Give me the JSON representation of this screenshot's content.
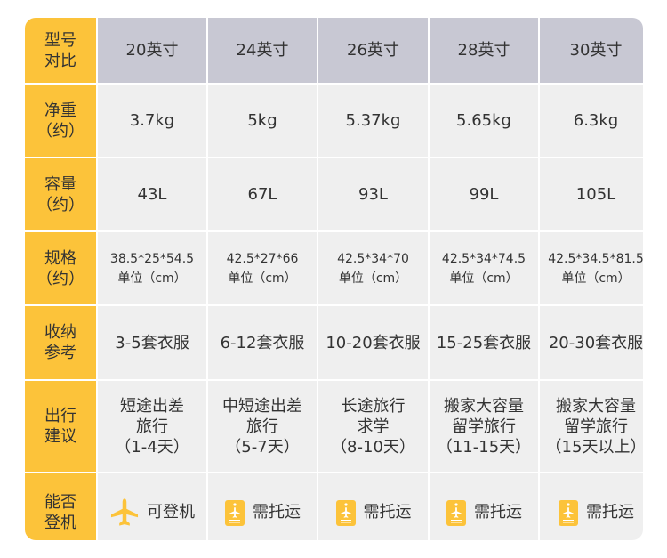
{
  "colors": {
    "label_bg": "#fcc33a",
    "header_bg": "#c8c8d3",
    "cell_bg": "#efefef",
    "icon": "#fcc33a"
  },
  "rows": [
    {
      "label": [
        "型号",
        "对比"
      ],
      "cells": [
        "20英寸",
        "24英寸",
        "26英寸",
        "28英寸",
        "30英寸"
      ]
    },
    {
      "label": [
        "净重",
        "（约）"
      ],
      "cells": [
        "3.7kg",
        "5kg",
        "5.37kg",
        "5.65kg",
        "6.3kg"
      ]
    },
    {
      "label": [
        "容量",
        "（约）"
      ],
      "cells": [
        "43L",
        "67L",
        "93L",
        "99L",
        "105L"
      ]
    },
    {
      "label": [
        "规格",
        "（约）"
      ],
      "cells": [
        [
          "38.5*25*54.5",
          "单位（cm）"
        ],
        [
          "42.5*27*66",
          "单位（cm）"
        ],
        [
          "42.5*34*70",
          "单位（cm）"
        ],
        [
          "42.5*34*74.5",
          "单位（cm）"
        ],
        [
          "42.5*34.5*81.5",
          "单位（cm）"
        ]
      ]
    },
    {
      "label": [
        "收纳",
        "参考"
      ],
      "cells": [
        "3-5套衣服",
        "6-12套衣服",
        "10-20套衣服",
        "15-25套衣服",
        "20-30套衣服"
      ]
    },
    {
      "label": [
        "出行",
        "建议"
      ],
      "cells": [
        [
          "短途出差",
          "旅行",
          "（1-4天）"
        ],
        [
          "中短途出差",
          "旅行",
          "（5-7天）"
        ],
        [
          "长途旅行",
          "求学",
          "（8-10天）"
        ],
        [
          "搬家大容量",
          "留学旅行",
          "（11-15天）"
        ],
        [
          "搬家大容量",
          "留学旅行",
          "（15天以上）"
        ]
      ]
    },
    {
      "label": [
        "能否",
        "登机"
      ],
      "cells": [
        {
          "icon": "airplane-icon",
          "text": "可登机"
        },
        {
          "icon": "luggage-tag-icon",
          "text": "需托运"
        },
        {
          "icon": "luggage-tag-icon",
          "text": "需托运"
        },
        {
          "icon": "luggage-tag-icon",
          "text": "需托运"
        },
        {
          "icon": "luggage-tag-icon",
          "text": "需托运"
        }
      ]
    }
  ]
}
